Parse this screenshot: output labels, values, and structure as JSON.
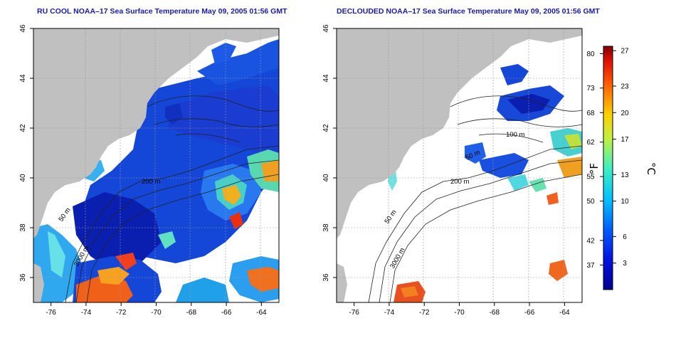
{
  "panels": [
    {
      "id": "left",
      "title": "RU COOL NOAA–17 Sea Surface Temperature May 09, 2005 01:56 GMT",
      "clouded": true
    },
    {
      "id": "right",
      "title": "DECLOUDED NOAA–17 Sea Surface Temperature May 09, 2005 01:56 GMT",
      "clouded": false
    }
  ],
  "map": {
    "lon_range": [
      -77,
      -63
    ],
    "lat_range": [
      35,
      46
    ],
    "lon_ticks": [
      -76,
      -74,
      -72,
      -70,
      -68,
      -66,
      -64
    ],
    "lon_tick_labels": [
      "-76",
      "-74",
      "-72",
      "-70",
      "-68",
      "-66",
      "-64"
    ],
    "lat_ticks": [
      36,
      38,
      40,
      42,
      44,
      46
    ],
    "lat_tick_labels": [
      "36",
      "38",
      "40",
      "42",
      "44",
      "46"
    ],
    "contour_labels": [
      {
        "text": "200 m"
      },
      {
        "text": "50 m"
      },
      {
        "text": "3000 m"
      },
      {
        "text": "100 m"
      }
    ],
    "colors": {
      "land": "#c0c0c0",
      "cloud": "#ffffff",
      "grid": "#999999"
    }
  },
  "colorbar": {
    "f_ticks": [
      37,
      42,
      50,
      55,
      62,
      68,
      73,
      80
    ],
    "f_tick_labels": [
      "37",
      "42",
      "50",
      "55",
      "62",
      "68",
      "73",
      "80"
    ],
    "c_ticks": [
      3,
      6,
      10,
      13,
      17,
      20,
      23,
      27
    ],
    "c_tick_labels": [
      "3",
      "6",
      "10",
      "13",
      "17",
      "20",
      "23",
      "27"
    ],
    "c_range": [
      0,
      27.5
    ],
    "f_unit": "°F",
    "c_unit": "°C"
  }
}
